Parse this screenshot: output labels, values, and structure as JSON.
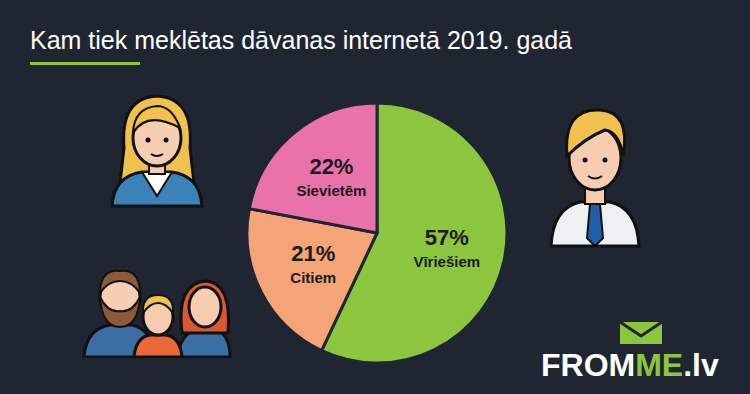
{
  "chart_data": {
    "type": "pie",
    "title": "Kam tiek meklētas dāvanas internetā 2019. gadā",
    "categories": [
      "Vīriešiem",
      "Citiem",
      "Sievietēm"
    ],
    "values": [
      57,
      21,
      22
    ],
    "value_labels": [
      "57%",
      "21%",
      "22%"
    ],
    "colors": [
      "#8cc63f",
      "#f4a477",
      "#ea72aa"
    ],
    "data_labels": true
  },
  "logo": [
    "FROM",
    "ME",
    ".lv"
  ]
}
